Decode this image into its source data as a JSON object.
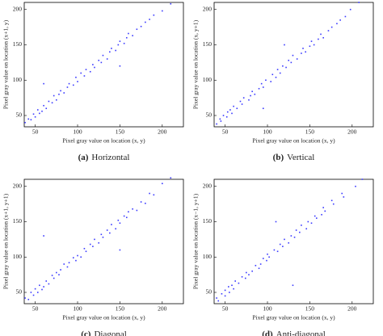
{
  "chart_data": [
    {
      "type": "scatter",
      "caption_label": "(a)",
      "caption": "Horizontal",
      "xlabel": "Pixel gray value on location (x, y)",
      "ylabel": "Pixel gray value on location (x+1, y)",
      "color": "#3a3aff",
      "xlim": [
        37,
        225
      ],
      "ylim": [
        34,
        210
      ],
      "xticks": [
        50,
        100,
        150,
        200
      ],
      "yticks": [
        50,
        100,
        150,
        200
      ],
      "x": [
        38,
        42,
        45,
        48,
        50,
        53,
        55,
        58,
        60,
        63,
        66,
        70,
        72,
        75,
        78,
        80,
        84,
        88,
        90,
        95,
        98,
        100,
        104,
        108,
        110,
        115,
        118,
        120,
        125,
        128,
        130,
        135,
        138,
        140,
        145,
        148,
        150,
        155,
        158,
        160,
        165,
        170,
        175,
        180,
        185,
        190,
        200,
        210,
        60,
        150
      ],
      "y": [
        40,
        45,
        44,
        52,
        48,
        58,
        53,
        56,
        64,
        60,
        70,
        68,
        78,
        72,
        80,
        85,
        82,
        90,
        95,
        93,
        104,
        98,
        110,
        106,
        115,
        112,
        122,
        118,
        128,
        125,
        135,
        130,
        140,
        145,
        142,
        150,
        155,
        152,
        160,
        166,
        163,
        172,
        176,
        182,
        186,
        192,
        198,
        208,
        95,
        120
      ]
    },
    {
      "type": "scatter",
      "caption_label": "(b)",
      "caption": "Vertical",
      "xlabel": "Pixel gray value on location (x, y)",
      "ylabel": "Pixel gray value on location (x, y+1)",
      "color": "#3a3aff",
      "xlim": [
        37,
        225
      ],
      "ylim": [
        34,
        210
      ],
      "xticks": [
        50,
        100,
        150,
        200
      ],
      "yticks": [
        50,
        100,
        150,
        200
      ],
      "x": [
        40,
        45,
        44,
        52,
        48,
        58,
        53,
        56,
        64,
        60,
        70,
        68,
        78,
        72,
        80,
        85,
        82,
        90,
        95,
        93,
        104,
        98,
        110,
        106,
        115,
        112,
        122,
        118,
        128,
        125,
        135,
        130,
        140,
        145,
        142,
        150,
        155,
        152,
        160,
        166,
        163,
        172,
        176,
        182,
        186,
        192,
        198,
        208,
        95,
        120
      ],
      "y": [
        38,
        42,
        45,
        48,
        50,
        53,
        55,
        58,
        60,
        63,
        66,
        70,
        72,
        75,
        78,
        80,
        84,
        88,
        90,
        95,
        98,
        100,
        104,
        108,
        110,
        115,
        118,
        120,
        125,
        128,
        130,
        135,
        138,
        140,
        145,
        148,
        150,
        155,
        158,
        160,
        165,
        170,
        175,
        180,
        185,
        190,
        200,
        210,
        60,
        150
      ]
    },
    {
      "type": "scatter",
      "caption_label": "(c)",
      "caption": "Diagonal",
      "xlabel": "Pixel gray value on location (x, y)",
      "ylabel": "Pixel gray value on location (x+1, y+1)",
      "color": "#3a3aff",
      "xlim": [
        37,
        225
      ],
      "ylim": [
        34,
        210
      ],
      "xticks": [
        50,
        100,
        150,
        200
      ],
      "yticks": [
        50,
        100,
        150,
        200
      ],
      "x": [
        38,
        42,
        45,
        48,
        50,
        53,
        55,
        58,
        60,
        63,
        66,
        70,
        72,
        75,
        78,
        80,
        84,
        88,
        90,
        95,
        98,
        100,
        104,
        108,
        110,
        115,
        118,
        120,
        125,
        128,
        130,
        135,
        138,
        140,
        145,
        148,
        150,
        155,
        158,
        160,
        165,
        170,
        175,
        180,
        185,
        190,
        200,
        210,
        60,
        150
      ],
      "y": [
        42,
        40,
        50,
        46,
        55,
        50,
        60,
        54,
        58,
        66,
        62,
        74,
        70,
        78,
        75,
        82,
        90,
        86,
        92,
        99,
        95,
        102,
        100,
        112,
        108,
        118,
        115,
        125,
        120,
        132,
        128,
        138,
        134,
        146,
        140,
        152,
        148,
        158,
        156,
        164,
        168,
        166,
        178,
        176,
        190,
        188,
        204,
        212,
        130,
        110
      ]
    },
    {
      "type": "scatter",
      "caption_label": "(d)",
      "caption": "Anti-diagonal",
      "xlabel": "Pixel gray value on location (x, y)",
      "ylabel": "Pixel gray value on location (x−1, y+1)",
      "color": "#3a3aff",
      "xlim": [
        37,
        225
      ],
      "ylim": [
        34,
        210
      ],
      "xticks": [
        50,
        100,
        150,
        200
      ],
      "yticks": [
        50,
        100,
        150,
        200
      ],
      "x": [
        42,
        40,
        50,
        46,
        55,
        50,
        60,
        54,
        58,
        66,
        62,
        74,
        70,
        78,
        75,
        82,
        90,
        86,
        92,
        99,
        95,
        102,
        100,
        112,
        108,
        118,
        115,
        125,
        120,
        132,
        128,
        138,
        134,
        146,
        140,
        152,
        148,
        158,
        156,
        164,
        168,
        166,
        178,
        176,
        190,
        188,
        204,
        212,
        130,
        110
      ],
      "y": [
        38,
        42,
        45,
        48,
        50,
        53,
        55,
        58,
        60,
        63,
        66,
        70,
        72,
        75,
        78,
        80,
        84,
        88,
        90,
        95,
        98,
        100,
        104,
        108,
        110,
        115,
        118,
        120,
        125,
        128,
        130,
        135,
        138,
        140,
        145,
        148,
        150,
        155,
        158,
        160,
        165,
        170,
        175,
        180,
        185,
        190,
        200,
        210,
        60,
        150
      ]
    }
  ]
}
